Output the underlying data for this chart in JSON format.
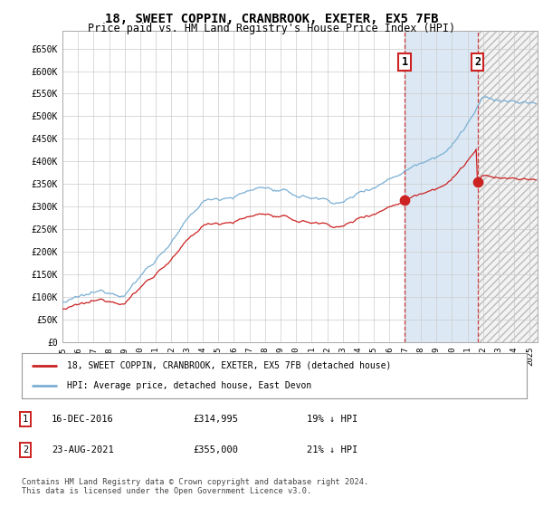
{
  "title": "18, SWEET COPPIN, CRANBROOK, EXETER, EX5 7FB",
  "subtitle": "Price paid vs. HM Land Registry's House Price Index (HPI)",
  "title_fontsize": 10,
  "subtitle_fontsize": 8.5,
  "ylabel_ticks": [
    "£0",
    "£50K",
    "£100K",
    "£150K",
    "£200K",
    "£250K",
    "£300K",
    "£350K",
    "£400K",
    "£450K",
    "£500K",
    "£550K",
    "£600K",
    "£650K"
  ],
  "ytick_values": [
    0,
    50000,
    100000,
    150000,
    200000,
    250000,
    300000,
    350000,
    400000,
    450000,
    500000,
    550000,
    600000,
    650000
  ],
  "ylim": [
    0,
    690000
  ],
  "xlim_start": 1995.0,
  "xlim_end": 2025.5,
  "purchase1_date": 2016.96,
  "purchase1_price": 314995,
  "purchase2_date": 2021.64,
  "purchase2_price": 355000,
  "shade_start": 2016.96,
  "shade_end": 2021.64,
  "hpi_color": "#7bafd4",
  "price_color": "#cc2222",
  "background_color": "#ffffff",
  "plot_bg_color": "#ffffff",
  "shade_color": "#dce9f5",
  "grid_color": "#cccccc",
  "legend_label_price": "18, SWEET COPPIN, CRANBROOK, EXETER, EX5 7FB (detached house)",
  "legend_label_hpi": "HPI: Average price, detached house, East Devon",
  "table_row1": [
    "1",
    "16-DEC-2016",
    "£314,995",
    "19% ↓ HPI"
  ],
  "table_row2": [
    "2",
    "23-AUG-2021",
    "£355,000",
    "21% ↓ HPI"
  ],
  "footer": "Contains HM Land Registry data © Crown copyright and database right 2024.\nThis data is licensed under the Open Government Licence v3.0.",
  "x_tick_years": [
    1995,
    1996,
    1997,
    1998,
    1999,
    2000,
    2001,
    2002,
    2003,
    2004,
    2005,
    2006,
    2007,
    2008,
    2009,
    2010,
    2011,
    2012,
    2013,
    2014,
    2015,
    2016,
    2017,
    2018,
    2019,
    2020,
    2021,
    2022,
    2023,
    2024,
    2025
  ]
}
